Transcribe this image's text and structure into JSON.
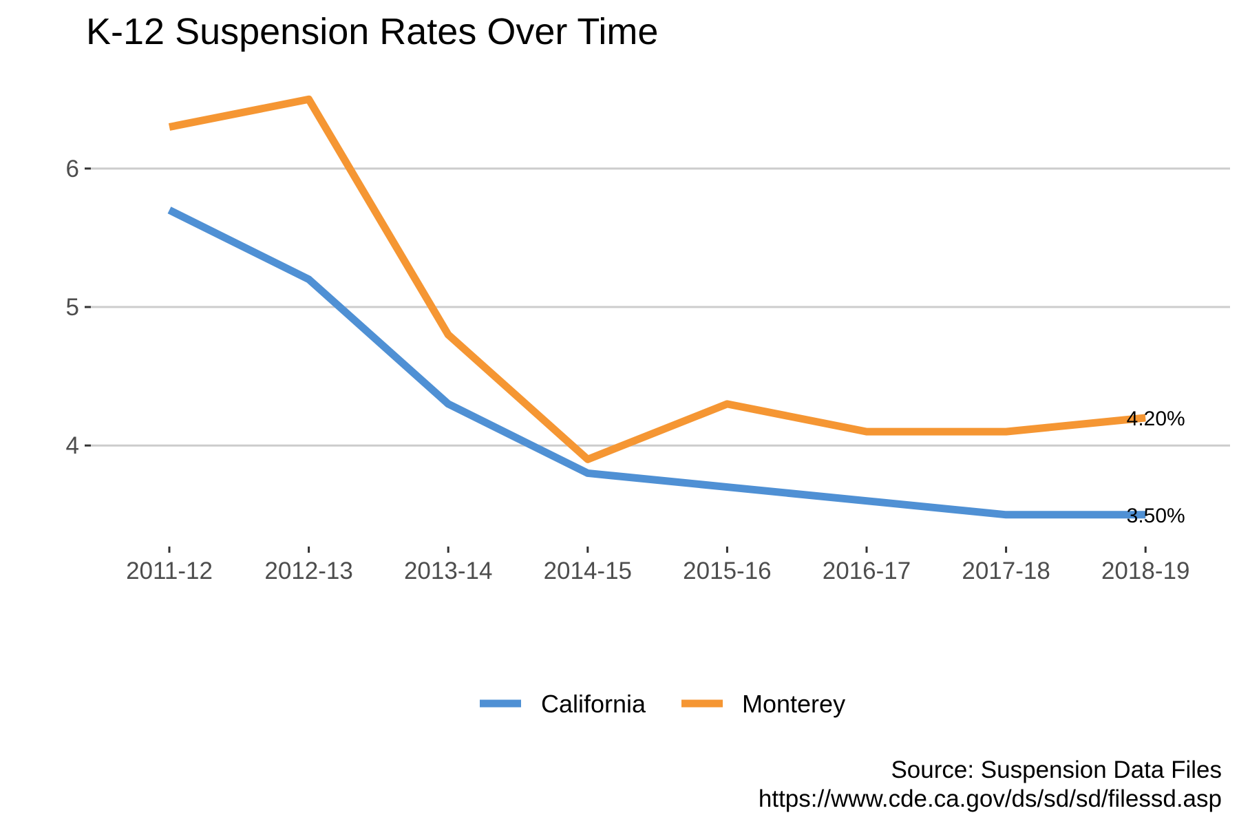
{
  "chart_data": {
    "type": "line",
    "title": "K-12 Suspension Rates Over Time",
    "xlabel": "",
    "ylabel": "",
    "categories": [
      "2011-12",
      "2012-13",
      "2013-14",
      "2014-15",
      "2015-16",
      "2016-17",
      "2017-18",
      "2018-19"
    ],
    "ylim": [
      3.33,
      6.72
    ],
    "y_ticks": [
      4,
      5,
      6
    ],
    "y_tick_labels": [
      "4",
      "5",
      "6"
    ],
    "grid": "horizontal major gridlines",
    "legend_position": "bottom",
    "series": [
      {
        "name": "California",
        "color": "#4f90d4",
        "values": [
          5.7,
          5.2,
          4.3,
          3.8,
          3.7,
          3.6,
          3.5,
          3.5
        ],
        "end_label": "3.50%"
      },
      {
        "name": "Monterey",
        "color": "#f59633",
        "values": [
          6.3,
          6.5,
          4.8,
          3.9,
          4.3,
          4.1,
          4.1,
          4.2
        ],
        "end_label": "4.20%"
      }
    ],
    "caption": [
      "Source: Suspension Data Files",
      "https://www.cde.ca.gov/ds/sd/sd/filessd.asp"
    ]
  }
}
